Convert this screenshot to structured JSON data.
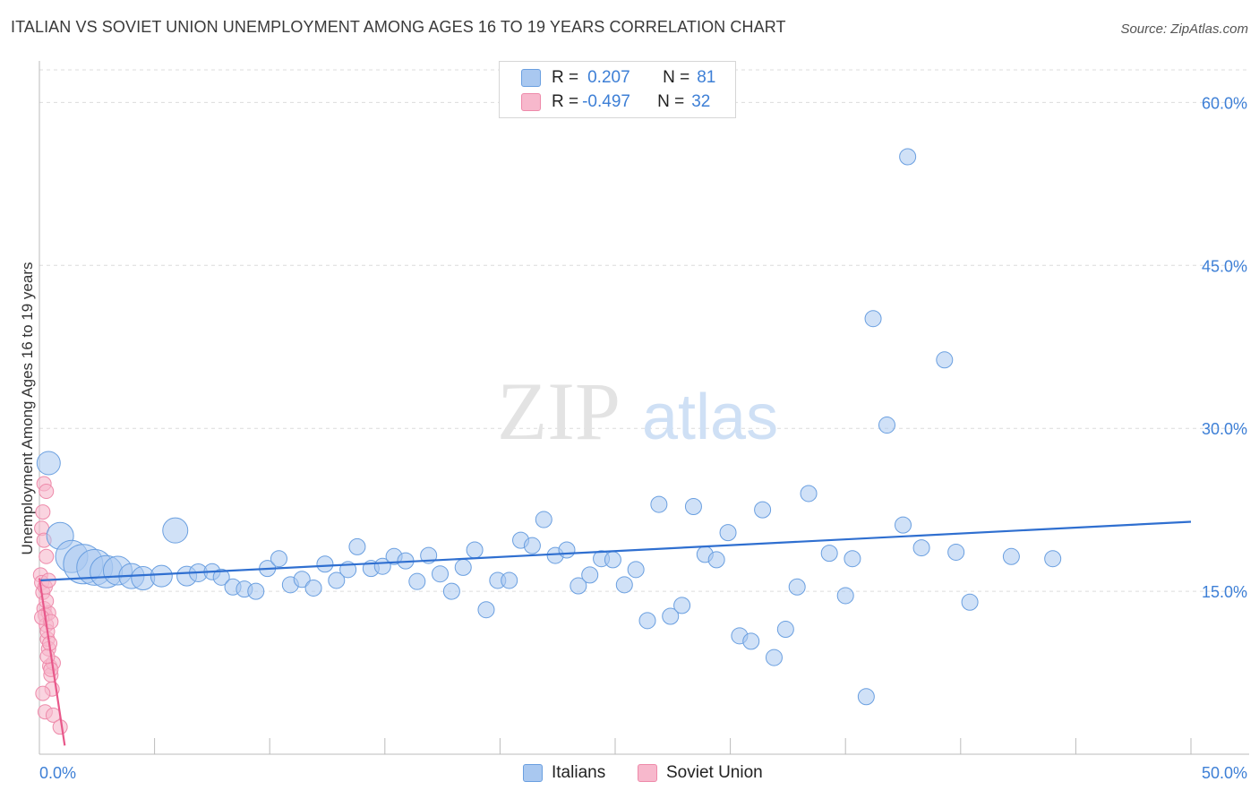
{
  "title": "ITALIAN VS SOVIET UNION UNEMPLOYMENT AMONG AGES 16 TO 19 YEARS CORRELATION CHART",
  "source": "Source: ZipAtlas.com",
  "watermark": {
    "zip": "ZIP",
    "atlas": "atlas"
  },
  "legend": {
    "rows": [
      {
        "r_label": "R =",
        "r_value": "0.207",
        "n_label": "N =",
        "n_value": "81",
        "color": "#a9c8f0"
      },
      {
        "r_label": "R =",
        "r_value": "-0.497",
        "n_label": "N =",
        "n_value": "32",
        "color": "#f7b8cc"
      }
    ]
  },
  "bottom_legend": {
    "italians": "Italians",
    "soviet": "Soviet Union"
  },
  "colors": {
    "blue_fill": "#a9c8f0",
    "blue_stroke": "#6a9fe0",
    "blue_line": "#2f6fd0",
    "pink_fill": "#f7b8cc",
    "pink_stroke": "#ee8aaa",
    "pink_line": "#e8588a",
    "tick_text": "#3d7fd6"
  },
  "chart_data": {
    "type": "scatter",
    "title": "ITALIAN VS SOVIET UNION UNEMPLOYMENT AMONG AGES 16 TO 19 YEARS CORRELATION CHART",
    "xlabel": "",
    "ylabel": "Unemployment Among Ages 16 to 19 years",
    "xlim": [
      0,
      50
    ],
    "ylim": [
      0,
      63
    ],
    "x_tick_labels": [
      "0.0%",
      "50.0%"
    ],
    "y_ticks": [
      15,
      30,
      45,
      60
    ],
    "y_tick_labels": [
      "15.0%",
      "30.0%",
      "45.0%",
      "60.0%"
    ],
    "grid": true,
    "legend_position": "top-center",
    "series": [
      {
        "name": "Italians",
        "r": 0.207,
        "n": 81,
        "trend": {
          "x": [
            0,
            50
          ],
          "y": [
            16.0,
            21.4
          ]
        },
        "points": [
          {
            "x": 0.4,
            "y": 26.8,
            "s": 13
          },
          {
            "x": 0.9,
            "y": 20.1,
            "s": 15
          },
          {
            "x": 1.4,
            "y": 18.2,
            "s": 18
          },
          {
            "x": 1.9,
            "y": 17.5,
            "s": 22
          },
          {
            "x": 2.4,
            "y": 17.2,
            "s": 20
          },
          {
            "x": 2.9,
            "y": 16.8,
            "s": 18
          },
          {
            "x": 3.4,
            "y": 16.9,
            "s": 16
          },
          {
            "x": 4.0,
            "y": 16.4,
            "s": 14
          },
          {
            "x": 4.5,
            "y": 16.2,
            "s": 13
          },
          {
            "x": 5.3,
            "y": 16.4,
            "s": 12
          },
          {
            "x": 5.9,
            "y": 20.6,
            "s": 14
          },
          {
            "x": 6.4,
            "y": 16.4,
            "s": 11
          },
          {
            "x": 6.9,
            "y": 16.7,
            "s": 10
          },
          {
            "x": 7.5,
            "y": 16.8,
            "s": 9
          },
          {
            "x": 7.9,
            "y": 16.3,
            "s": 9
          },
          {
            "x": 8.4,
            "y": 15.4,
            "s": 9
          },
          {
            "x": 8.9,
            "y": 15.2,
            "s": 9
          },
          {
            "x": 9.4,
            "y": 15.0,
            "s": 9
          },
          {
            "x": 9.9,
            "y": 17.1,
            "s": 9
          },
          {
            "x": 10.4,
            "y": 18.0,
            "s": 9
          },
          {
            "x": 10.9,
            "y": 15.6,
            "s": 9
          },
          {
            "x": 11.4,
            "y": 16.1,
            "s": 9
          },
          {
            "x": 11.9,
            "y": 15.3,
            "s": 9
          },
          {
            "x": 12.4,
            "y": 17.5,
            "s": 9
          },
          {
            "x": 12.9,
            "y": 16.0,
            "s": 9
          },
          {
            "x": 13.4,
            "y": 17.0,
            "s": 9
          },
          {
            "x": 13.8,
            "y": 19.1,
            "s": 9
          },
          {
            "x": 14.4,
            "y": 17.1,
            "s": 9
          },
          {
            "x": 14.9,
            "y": 17.3,
            "s": 9
          },
          {
            "x": 15.4,
            "y": 18.2,
            "s": 9
          },
          {
            "x": 15.9,
            "y": 17.8,
            "s": 9
          },
          {
            "x": 16.4,
            "y": 15.9,
            "s": 9
          },
          {
            "x": 16.9,
            "y": 18.3,
            "s": 9
          },
          {
            "x": 17.4,
            "y": 16.6,
            "s": 9
          },
          {
            "x": 17.9,
            "y": 15.0,
            "s": 9
          },
          {
            "x": 18.4,
            "y": 17.2,
            "s": 9
          },
          {
            "x": 18.9,
            "y": 18.8,
            "s": 9
          },
          {
            "x": 19.4,
            "y": 13.3,
            "s": 9
          },
          {
            "x": 19.9,
            "y": 16.0,
            "s": 9
          },
          {
            "x": 20.4,
            "y": 16.0,
            "s": 9
          },
          {
            "x": 20.9,
            "y": 19.7,
            "s": 9
          },
          {
            "x": 21.4,
            "y": 19.2,
            "s": 9
          },
          {
            "x": 21.9,
            "y": 21.6,
            "s": 9
          },
          {
            "x": 22.4,
            "y": 18.3,
            "s": 9
          },
          {
            "x": 22.9,
            "y": 18.8,
            "s": 9
          },
          {
            "x": 23.4,
            "y": 15.5,
            "s": 9
          },
          {
            "x": 23.9,
            "y": 16.5,
            "s": 9
          },
          {
            "x": 24.4,
            "y": 18.0,
            "s": 9
          },
          {
            "x": 24.9,
            "y": 17.9,
            "s": 9
          },
          {
            "x": 25.4,
            "y": 15.6,
            "s": 9
          },
          {
            "x": 25.9,
            "y": 17.0,
            "s": 9
          },
          {
            "x": 26.4,
            "y": 12.3,
            "s": 9
          },
          {
            "x": 26.9,
            "y": 23.0,
            "s": 9
          },
          {
            "x": 27.4,
            "y": 12.7,
            "s": 9
          },
          {
            "x": 27.9,
            "y": 13.7,
            "s": 9
          },
          {
            "x": 28.4,
            "y": 22.8,
            "s": 9
          },
          {
            "x": 28.9,
            "y": 18.4,
            "s": 9
          },
          {
            "x": 29.4,
            "y": 17.9,
            "s": 9
          },
          {
            "x": 29.9,
            "y": 20.4,
            "s": 9
          },
          {
            "x": 30.4,
            "y": 10.9,
            "s": 9
          },
          {
            "x": 30.9,
            "y": 10.4,
            "s": 9
          },
          {
            "x": 31.4,
            "y": 22.5,
            "s": 9
          },
          {
            "x": 31.9,
            "y": 8.9,
            "s": 9
          },
          {
            "x": 32.4,
            "y": 11.5,
            "s": 9
          },
          {
            "x": 32.9,
            "y": 15.4,
            "s": 9
          },
          {
            "x": 33.4,
            "y": 24.0,
            "s": 9
          },
          {
            "x": 34.3,
            "y": 18.5,
            "s": 9
          },
          {
            "x": 35.0,
            "y": 14.6,
            "s": 9
          },
          {
            "x": 35.3,
            "y": 18.0,
            "s": 9
          },
          {
            "x": 35.9,
            "y": 5.3,
            "s": 9
          },
          {
            "x": 36.2,
            "y": 40.1,
            "s": 9
          },
          {
            "x": 36.8,
            "y": 30.3,
            "s": 9
          },
          {
            "x": 37.5,
            "y": 21.1,
            "s": 9
          },
          {
            "x": 37.7,
            "y": 55.0,
            "s": 9
          },
          {
            "x": 38.3,
            "y": 19.0,
            "s": 9
          },
          {
            "x": 39.3,
            "y": 36.3,
            "s": 9
          },
          {
            "x": 39.8,
            "y": 18.6,
            "s": 9
          },
          {
            "x": 40.4,
            "y": 14.0,
            "s": 9
          },
          {
            "x": 42.2,
            "y": 18.2,
            "s": 9
          },
          {
            "x": 44.0,
            "y": 18.0,
            "s": 9
          }
        ]
      },
      {
        "name": "Soviet Union",
        "r": -0.497,
        "n": 32,
        "trend": {
          "x": [
            0,
            1.1
          ],
          "y": [
            16.2,
            0.8
          ]
        },
        "points": [
          {
            "x": 0.05,
            "y": 16.5
          },
          {
            "x": 0.1,
            "y": 15.8
          },
          {
            "x": 0.15,
            "y": 14.9
          },
          {
            "x": 0.2,
            "y": 13.4
          },
          {
            "x": 0.25,
            "y": 12.8
          },
          {
            "x": 0.3,
            "y": 11.9
          },
          {
            "x": 0.35,
            "y": 10.6
          },
          {
            "x": 0.4,
            "y": 9.7
          },
          {
            "x": 0.45,
            "y": 8.1
          },
          {
            "x": 0.5,
            "y": 7.3
          },
          {
            "x": 0.55,
            "y": 6.0
          },
          {
            "x": 0.2,
            "y": 24.9
          },
          {
            "x": 0.3,
            "y": 24.2
          },
          {
            "x": 0.15,
            "y": 22.3
          },
          {
            "x": 0.1,
            "y": 20.8
          },
          {
            "x": 0.2,
            "y": 19.7
          },
          {
            "x": 0.3,
            "y": 18.2
          },
          {
            "x": 0.25,
            "y": 15.4
          },
          {
            "x": 0.4,
            "y": 13.0
          },
          {
            "x": 0.35,
            "y": 11.3
          },
          {
            "x": 0.45,
            "y": 10.2
          },
          {
            "x": 0.6,
            "y": 8.4
          },
          {
            "x": 0.5,
            "y": 7.8
          },
          {
            "x": 0.15,
            "y": 5.6
          },
          {
            "x": 0.25,
            "y": 3.9
          },
          {
            "x": 0.6,
            "y": 3.6
          },
          {
            "x": 0.9,
            "y": 2.5
          },
          {
            "x": 0.1,
            "y": 12.6
          },
          {
            "x": 0.3,
            "y": 14.1
          },
          {
            "x": 0.4,
            "y": 16.0
          },
          {
            "x": 0.5,
            "y": 12.2
          },
          {
            "x": 0.35,
            "y": 9.0
          }
        ]
      }
    ]
  }
}
